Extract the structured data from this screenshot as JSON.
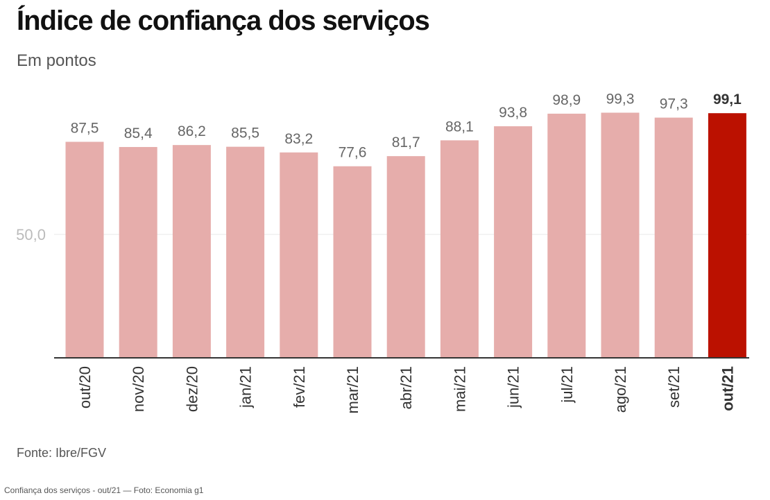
{
  "header": {
    "title": "Índice de confiança dos serviços",
    "subtitle": "Em pontos"
  },
  "footer": {
    "source": "Fonte: Ibre/FGV",
    "caption": "Confiança dos serviços - out/21 — Foto: Economia g1"
  },
  "colors": {
    "bar": "#e6adab",
    "highlight": "#bb1100",
    "value_label": "#666666",
    "tick_label": "#333333",
    "y_tick": "#bbbbbb",
    "gridline": "#e8e8e8",
    "axis": "#333333"
  },
  "chart_data": {
    "type": "bar",
    "categories": [
      "out/20",
      "nov/20",
      "dez/20",
      "jan/21",
      "fev/21",
      "mar/21",
      "abr/21",
      "mai/21",
      "jun/21",
      "jul/21",
      "ago/21",
      "set/21",
      "out/21"
    ],
    "values": [
      87.5,
      85.4,
      86.2,
      85.5,
      83.2,
      77.6,
      81.7,
      88.1,
      93.8,
      98.9,
      99.3,
      97.3,
      99.1
    ],
    "value_labels": [
      "87,5",
      "85,4",
      "86,2",
      "85,5",
      "83,2",
      "77,6",
      "81,7",
      "88,1",
      "93,8",
      "98,9",
      "99,3",
      "97,3",
      "99,1"
    ],
    "highlight_index": 12,
    "y_ticks": [
      {
        "value": 50,
        "label": "50,0"
      }
    ],
    "ylim": [
      0,
      100
    ],
    "grid": true,
    "legend": "none"
  }
}
